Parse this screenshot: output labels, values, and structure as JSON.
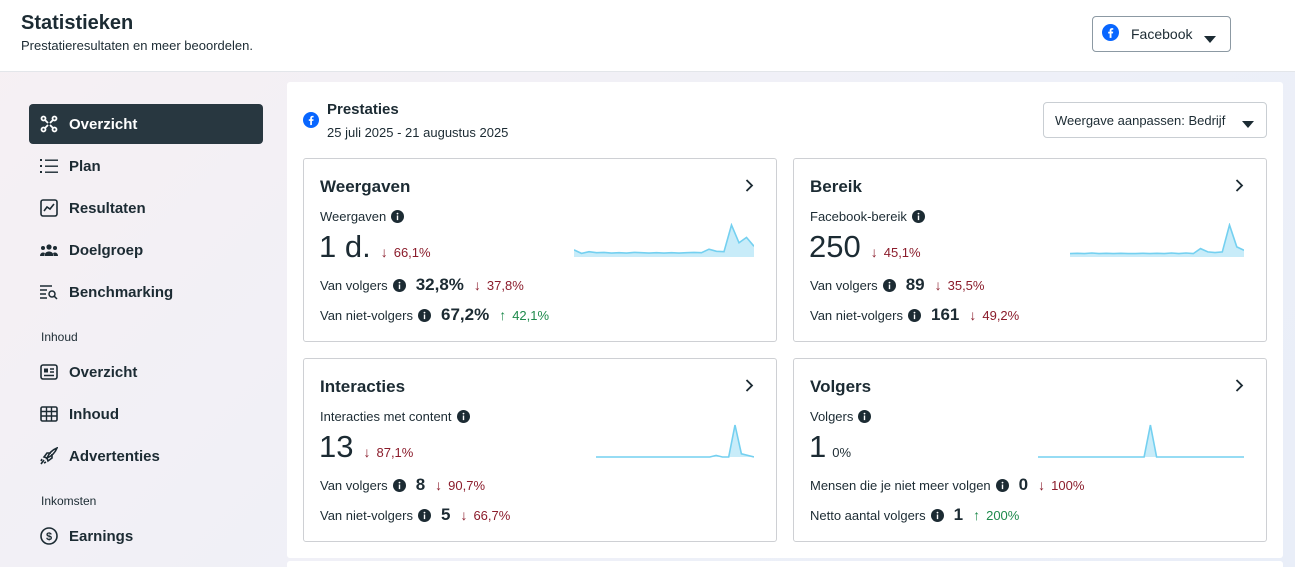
{
  "header": {
    "title": "Statistieken",
    "subtitle": "Prestatieresultaten en meer beoordelen.",
    "platform_select": "Facebook"
  },
  "sidebar": {
    "items": [
      {
        "label": "Overzicht",
        "icon": "overview-icon",
        "active": true
      },
      {
        "label": "Plan",
        "icon": "list-icon"
      },
      {
        "label": "Resultaten",
        "icon": "trend-chart-icon"
      },
      {
        "label": "Doelgroep",
        "icon": "audience-icon"
      },
      {
        "label": "Benchmarking",
        "icon": "benchmark-search-icon"
      }
    ],
    "section_content": "Inhoud",
    "content_items": [
      {
        "label": "Overzicht",
        "icon": "content-card-icon"
      },
      {
        "label": "Inhoud",
        "icon": "table-grid-icon"
      },
      {
        "label": "Advertenties",
        "icon": "rocket-icon"
      }
    ],
    "section_earnings": "Inkomsten",
    "earnings_items": [
      {
        "label": "Earnings",
        "icon": "dollar-circle-icon"
      }
    ]
  },
  "panel": {
    "title": "Prestaties",
    "date_range": "25 juli 2025 - 21 augustus 2025",
    "view_select": "Weergave aanpassen: Bedrijf"
  },
  "cards": {
    "views": {
      "title": "Weergaven",
      "metric_label": "Weergaven",
      "value": "1 d.",
      "delta": "66,1%",
      "delta_dir": "down",
      "rows": [
        {
          "label": "Van volgers",
          "value": "32,8%",
          "delta": "37,8%",
          "dir": "down"
        },
        {
          "label": "Van niet-volgers",
          "value": "67,2%",
          "delta": "42,1%",
          "dir": "up"
        }
      ],
      "spark": [
        2,
        1,
        1.5,
        1.2,
        1.3,
        1.1,
        1.2,
        1.1,
        1.3,
        1.2,
        1.1,
        1.2,
        1.1,
        1.2,
        1.1,
        1.2,
        1.3,
        1.2,
        2.2,
        1.6,
        1.5,
        9,
        4,
        5.5,
        3
      ]
    },
    "reach": {
      "title": "Bereik",
      "metric_label": "Facebook-bereik",
      "value": "250",
      "delta": "45,1%",
      "delta_dir": "down",
      "rows": [
        {
          "label": "Van volgers",
          "value": "89",
          "delta": "35,5%",
          "dir": "down"
        },
        {
          "label": "Van niet-volgers",
          "value": "161",
          "delta": "49,2%",
          "dir": "down"
        }
      ],
      "spark": [
        1,
        1.1,
        1,
        1.2,
        1,
        1.1,
        1,
        1.1,
        1,
        1,
        1.1,
        1,
        1.1,
        1,
        1.2,
        1,
        1.2,
        1,
        2.5,
        1.5,
        1.3,
        1.5,
        9.5,
        3,
        2
      ]
    },
    "interactions": {
      "title": "Interacties",
      "metric_label": "Interacties met content",
      "value": "13",
      "delta": "87,1%",
      "delta_dir": "down",
      "rows": [
        {
          "label": "Van volgers",
          "value": "8",
          "delta": "90,7%",
          "dir": "down"
        },
        {
          "label": "Van niet-volgers",
          "value": "5",
          "delta": "66,7%",
          "dir": "down"
        }
      ],
      "spark": [
        0,
        0,
        0,
        0,
        0,
        0,
        0,
        0,
        0,
        0,
        0,
        0,
        0,
        0,
        0,
        0,
        0,
        0,
        0,
        0.5,
        0,
        0,
        10,
        1,
        0.5,
        0
      ]
    },
    "followers": {
      "title": "Volgers",
      "metric_label": "Volgers",
      "value": "1",
      "delta": "0%",
      "delta_dir": "neutral",
      "rows": [
        {
          "label": "Mensen die je niet meer volgen",
          "value": "0",
          "delta": "100%",
          "dir": "down"
        },
        {
          "label": "Netto aantal volgers",
          "value": "1",
          "delta": "200%",
          "dir": "up"
        }
      ],
      "spark": [
        0,
        0,
        0,
        0,
        0,
        0,
        0,
        0,
        0,
        0,
        0,
        0,
        0,
        0,
        0,
        0,
        0,
        0,
        10,
        0,
        0,
        0,
        0,
        0,
        0,
        0,
        0,
        0,
        0,
        0,
        0,
        0,
        0,
        0
      ]
    }
  },
  "colors": {
    "active_nav": "#283740",
    "down": "#8b1c2b",
    "up": "#1e8a4c",
    "spark_line": "#74d0f0",
    "spark_fill": "#c8ecf9",
    "facebook_blue": "#0866ff"
  }
}
